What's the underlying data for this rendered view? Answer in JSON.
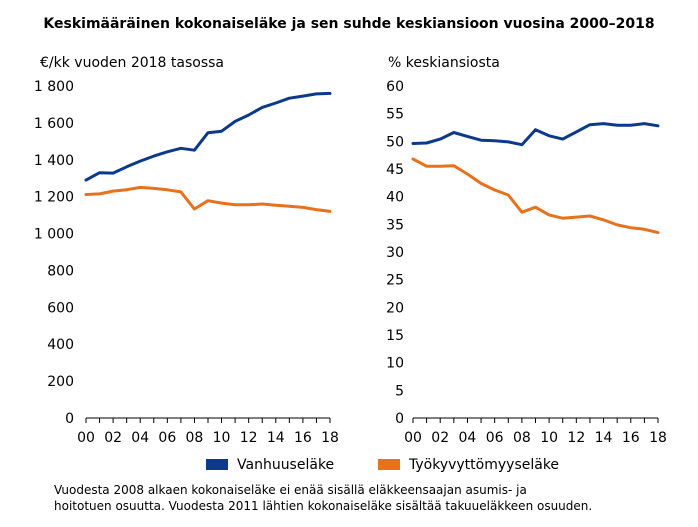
{
  "chart_data": {
    "title": "Keskimääräinen kokonaiseläke ja sen suhde keskiansioon vuosina 2000–2018",
    "x": [
      2000,
      2001,
      2002,
      2003,
      2004,
      2005,
      2006,
      2007,
      2008,
      2009,
      2010,
      2011,
      2012,
      2013,
      2014,
      2015,
      2016,
      2017,
      2018
    ],
    "x_tick_labels": [
      "00",
      "02",
      "04",
      "06",
      "08",
      "10",
      "12",
      "14",
      "16",
      "18"
    ],
    "legend": {
      "placement": "bottom",
      "entries": [
        "Vanhuuseläke",
        "Työkyvyttömyyseläke"
      ]
    },
    "colors": {
      "Vanhuuseläke": "#0b3a8c",
      "Työkyvyttömyyseläke": "#e8711c"
    },
    "footnote": [
      "Vuodesta 2008 alkaen kokonaiseläke ei enää sisällä eläkkeensaajan asumis- ja",
      "hoitotuen osuutta. Vuodesta 2011 lähtien kokonaiseläke sisältää takuueläkkeen osuuden."
    ],
    "panels": [
      {
        "type": "line",
        "ylabel": "€/kk vuoden 2018 tasossa",
        "ylim": [
          0,
          1800
        ],
        "y_ticks": [
          0,
          200,
          400,
          600,
          800,
          1000,
          1200,
          1400,
          1600,
          1800
        ],
        "y_tick_labels": [
          "0",
          "200",
          "400",
          "600",
          "800",
          "1 000",
          "1 200",
          "1 400",
          "1 600",
          "1 800"
        ],
        "series": [
          {
            "name": "Vanhuuseläke",
            "values": [
              1290,
              1330,
              1328,
              1362,
              1393,
              1420,
              1443,
              1462,
              1452,
              1547,
              1555,
              1608,
              1643,
              1684,
              1708,
              1734,
              1745,
              1757,
              1760
            ]
          },
          {
            "name": "Työkyvyttömyyseläke",
            "values": [
              1212,
              1215,
              1230,
              1238,
              1250,
              1245,
              1237,
              1226,
              1133,
              1178,
              1165,
              1156,
              1156,
              1160,
              1153,
              1148,
              1142,
              1130,
              1120
            ]
          }
        ]
      },
      {
        "type": "line",
        "ylabel": "% keskiansiosta",
        "ylim": [
          0,
          60
        ],
        "y_ticks": [
          0,
          5,
          10,
          15,
          20,
          25,
          30,
          35,
          40,
          45,
          50,
          55,
          60
        ],
        "y_tick_labels": [
          "0",
          "5",
          "10",
          "15",
          "20",
          "25",
          "30",
          "35",
          "40",
          "45",
          "50",
          "55",
          "60"
        ],
        "series": [
          {
            "name": "Vanhuuseläke",
            "values": [
              49.6,
              49.7,
              50.4,
              51.6,
              50.9,
              50.2,
              50.1,
              49.9,
              49.4,
              52.1,
              51.0,
              50.4,
              51.7,
              53.0,
              53.2,
              52.9,
              52.9,
              53.2,
              52.8
            ]
          },
          {
            "name": "Työkyvyttömyyseläke",
            "values": [
              46.8,
              45.5,
              45.5,
              45.6,
              44.1,
              42.4,
              41.2,
              40.3,
              37.2,
              38.1,
              36.7,
              36.1,
              36.3,
              36.5,
              35.8,
              34.9,
              34.4,
              34.1,
              33.5
            ]
          }
        ]
      }
    ]
  }
}
